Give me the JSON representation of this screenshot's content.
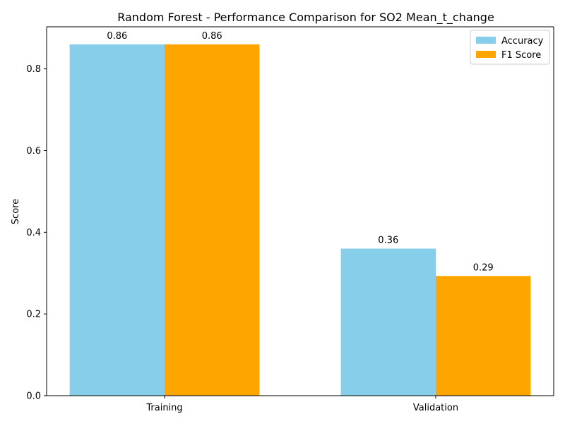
{
  "chart_data": {
    "type": "bar",
    "title": "Random Forest - Performance Comparison for SO2 Mean_t_change",
    "xlabel": "",
    "ylabel": "Score",
    "categories": [
      "Training",
      "Validation"
    ],
    "series": [
      {
        "name": "Accuracy",
        "values": [
          0.86,
          0.36
        ],
        "color": "#87CEEB",
        "labels": [
          "0.86",
          "0.36"
        ]
      },
      {
        "name": "F1 Score",
        "values": [
          0.86,
          0.293
        ],
        "color": "#FFA500",
        "labels": [
          "0.86",
          "0.29"
        ]
      }
    ],
    "ylim": [
      0,
      0.903
    ],
    "yticks": [
      0.0,
      0.2,
      0.4,
      0.6,
      0.8
    ],
    "ytick_labels": [
      "0.0",
      "0.2",
      "0.4",
      "0.6",
      "0.8"
    ],
    "grid": false,
    "legend": "top-right"
  }
}
